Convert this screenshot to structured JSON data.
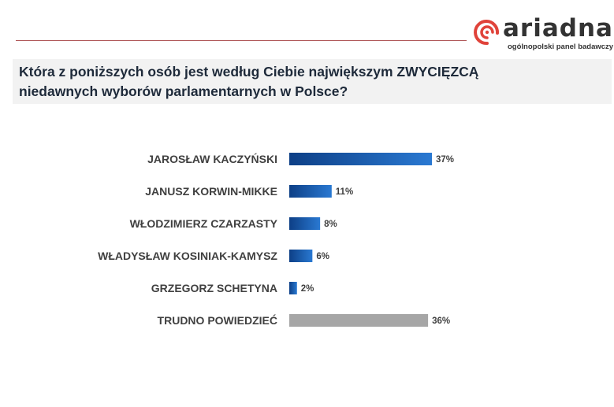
{
  "header": {
    "brand": "ariadna",
    "tagline": "ogólnopolski panel badawczy"
  },
  "question": {
    "line1": "Która z poniższych osób jest według Ciebie największym ZWYCIĘZCĄ",
    "line2": "niedawnych wyborów parlamentarnych w Polsce?"
  },
  "colors": {
    "accent": "#e0433a",
    "bar_dark": "#0d3f86",
    "bar_light": "#2a79d2",
    "bar_neutral": "#a6a6a6"
  },
  "chart_data": {
    "type": "bar",
    "orientation": "horizontal",
    "title": "",
    "xlabel": "",
    "ylabel": "",
    "xlim": [
      0,
      40
    ],
    "grid": false,
    "legend": "none",
    "categories": [
      "JAROSŁAW KACZYŃSKI",
      "JANUSZ KORWIN-MIKKE",
      "WŁODZIMIERZ CZARZASTY",
      "WŁADYSŁAW KOSINIAK-KAMYSZ",
      "GRZEGORZ SCHETYNA",
      "TRUDNO POWIEDZIEĆ"
    ],
    "values": [
      37,
      11,
      8,
      6,
      2,
      36
    ],
    "value_labels": [
      "37%",
      "11%",
      "8%",
      "6%",
      "2%",
      "36%"
    ],
    "neutral_categories": [
      "TRUDNO POWIEDZIEĆ"
    ]
  }
}
